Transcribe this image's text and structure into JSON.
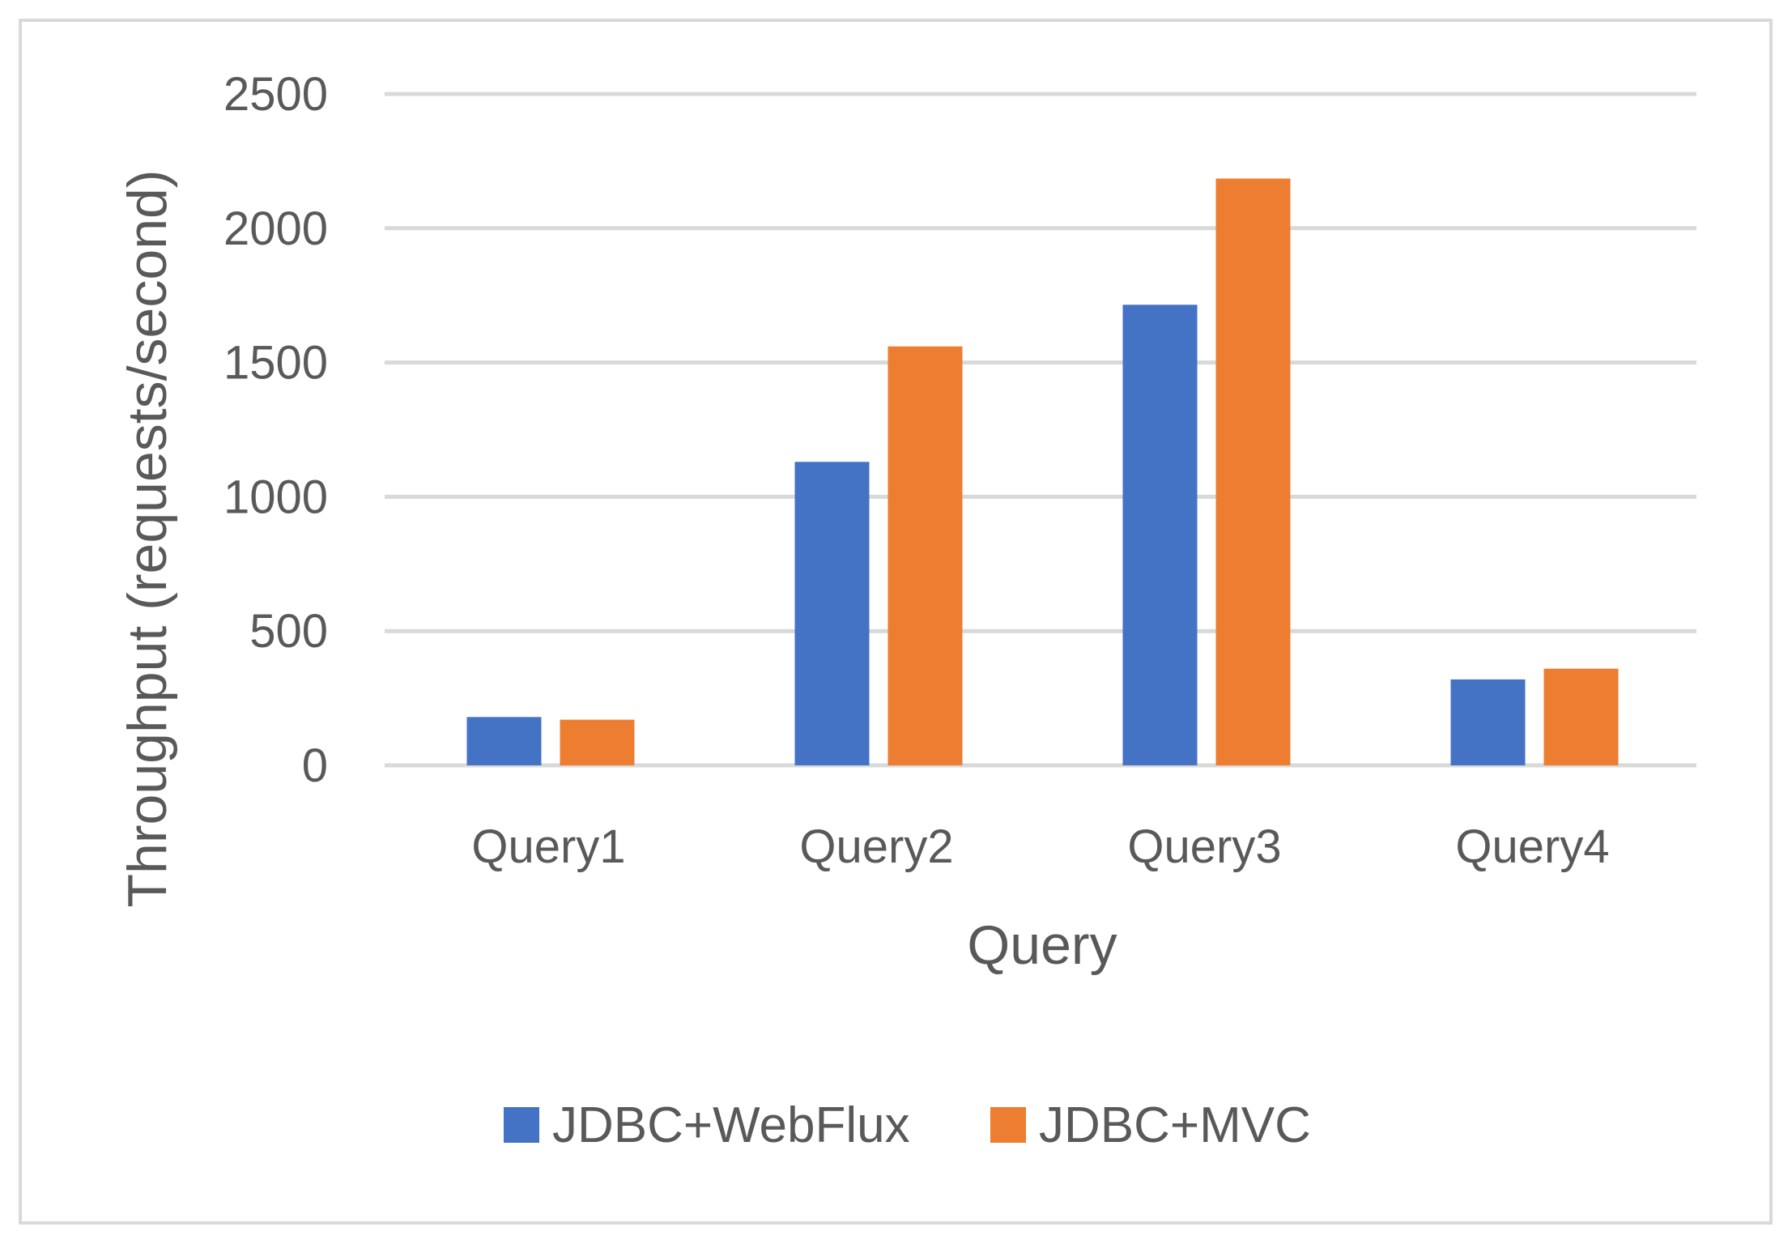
{
  "chart_data": {
    "type": "bar",
    "title": "",
    "xlabel": "Query",
    "ylabel": "Throughput (requests/second)",
    "categories": [
      "Query1",
      "Query2",
      "Query3",
      "Query4"
    ],
    "series": [
      {
        "name": "JDBC+WebFlux",
        "color": "#4472C4",
        "values": [
          180,
          1130,
          1715,
          320
        ]
      },
      {
        "name": "JDBC+MVC",
        "color": "#ED7D31",
        "values": [
          170,
          1560,
          2185,
          360
        ]
      }
    ],
    "ylim": [
      0,
      2500
    ],
    "yticks": [
      "0",
      "500",
      "1000",
      "1500",
      "2000",
      "2500"
    ],
    "grid": true,
    "legend": "bottom"
  }
}
